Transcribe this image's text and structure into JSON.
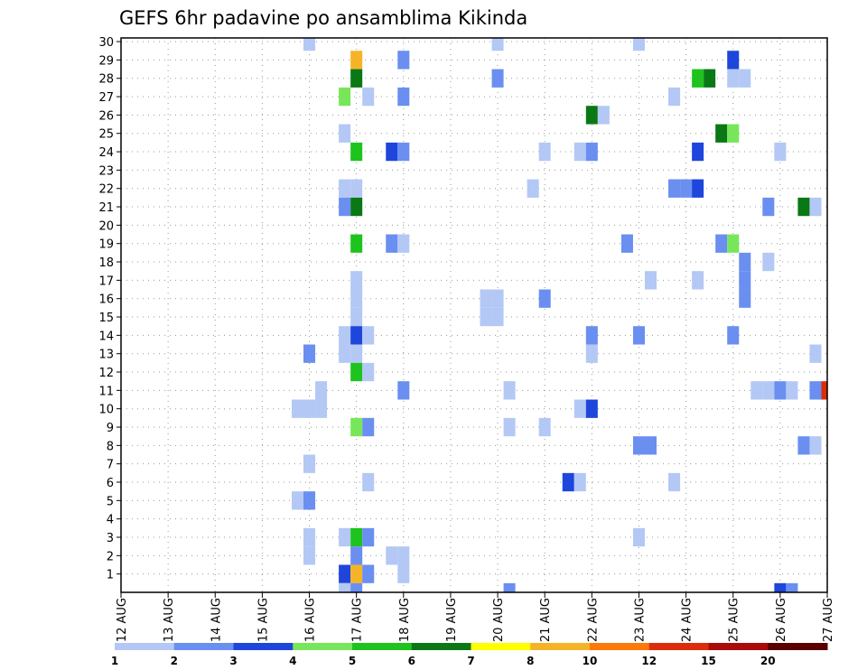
{
  "chart_data": {
    "type": "heatmap",
    "title": "GEFS 6hr padavine po ansamblima Kikinda",
    "x_tick_labels": [
      "12 AUG",
      "13 AUG",
      "14 AUG",
      "15 AUG",
      "16 AUG",
      "17 AUG",
      "18 AUG",
      "19 AUG",
      "20 AUG",
      "21 AUG",
      "22 AUG",
      "23 AUG",
      "24 AUG",
      "25 AUG",
      "26 AUG",
      "27 AUG"
    ],
    "y_tick_labels": [
      "1",
      "2",
      "3",
      "4",
      "5",
      "6",
      "7",
      "8",
      "9",
      "10",
      "11",
      "12",
      "13",
      "14",
      "15",
      "16",
      "17",
      "18",
      "19",
      "20",
      "21",
      "22",
      "23",
      "24",
      "25",
      "26",
      "27",
      "28",
      "29",
      "30"
    ],
    "ylim": [
      0,
      30
    ],
    "grid": true,
    "legend": {
      "placement": "bottom",
      "labels": [
        "1",
        "2",
        "3",
        "4",
        "5",
        "6",
        "7",
        "8",
        "10",
        "12",
        "15",
        "20"
      ],
      "colors": [
        "#b4c8f5",
        "#6a8ff0",
        "#1e46dc",
        "#78e65a",
        "#1ec31e",
        "#0a7814",
        "#ffff00",
        "#f5b428",
        "#ff780a",
        "#dc2d0a",
        "#aa0a0a",
        "#5a0000"
      ]
    },
    "cells": [
      {
        "member": 30,
        "day": 16.0,
        "cls": 1
      },
      {
        "member": 30,
        "day": 20.0,
        "cls": 1
      },
      {
        "member": 30,
        "day": 23.0,
        "cls": 1
      },
      {
        "member": 29,
        "day": 17.0,
        "cls": 8
      },
      {
        "member": 29,
        "day": 18.0,
        "cls": 2
      },
      {
        "member": 29,
        "day": 25.0,
        "cls": 3
      },
      {
        "member": 28,
        "day": 17.0,
        "cls": 6
      },
      {
        "member": 28,
        "day": 20.0,
        "cls": 2
      },
      {
        "member": 28,
        "day": 24.25,
        "cls": 5
      },
      {
        "member": 28,
        "day": 24.5,
        "cls": 6
      },
      {
        "member": 28,
        "day": 25.0,
        "cls": 1
      },
      {
        "member": 28,
        "day": 25.25,
        "cls": 1
      },
      {
        "member": 27,
        "day": 16.75,
        "cls": 4
      },
      {
        "member": 27,
        "day": 17.25,
        "cls": 1
      },
      {
        "member": 27,
        "day": 18.0,
        "cls": 2
      },
      {
        "member": 27,
        "day": 23.75,
        "cls": 1
      },
      {
        "member": 26,
        "day": 22.0,
        "cls": 6
      },
      {
        "member": 26,
        "day": 22.25,
        "cls": 1
      },
      {
        "member": 25,
        "day": 16.75,
        "cls": 1
      },
      {
        "member": 25,
        "day": 24.75,
        "cls": 6
      },
      {
        "member": 25,
        "day": 25.0,
        "cls": 4
      },
      {
        "member": 24,
        "day": 17.0,
        "cls": 5
      },
      {
        "member": 24,
        "day": 17.75,
        "cls": 3
      },
      {
        "member": 24,
        "day": 18.0,
        "cls": 2
      },
      {
        "member": 24,
        "day": 21.0,
        "cls": 1
      },
      {
        "member": 24,
        "day": 21.75,
        "cls": 1
      },
      {
        "member": 24,
        "day": 22.0,
        "cls": 2
      },
      {
        "member": 24,
        "day": 24.25,
        "cls": 3
      },
      {
        "member": 24,
        "day": 26.0,
        "cls": 1
      },
      {
        "member": 22,
        "day": 16.75,
        "cls": 1
      },
      {
        "member": 22,
        "day": 17.0,
        "cls": 1
      },
      {
        "member": 22,
        "day": 20.75,
        "cls": 1
      },
      {
        "member": 22,
        "day": 23.75,
        "cls": 2
      },
      {
        "member": 22,
        "day": 24.0,
        "cls": 2
      },
      {
        "member": 22,
        "day": 24.25,
        "cls": 3
      },
      {
        "member": 21,
        "day": 16.75,
        "cls": 2
      },
      {
        "member": 21,
        "day": 17.0,
        "cls": 6
      },
      {
        "member": 21,
        "day": 25.75,
        "cls": 2
      },
      {
        "member": 21,
        "day": 26.5,
        "cls": 6
      },
      {
        "member": 21,
        "day": 26.75,
        "cls": 1
      },
      {
        "member": 19,
        "day": 17.0,
        "cls": 5
      },
      {
        "member": 19,
        "day": 17.75,
        "cls": 2
      },
      {
        "member": 19,
        "day": 18.0,
        "cls": 1
      },
      {
        "member": 19,
        "day": 22.75,
        "cls": 2
      },
      {
        "member": 19,
        "day": 24.75,
        "cls": 2
      },
      {
        "member": 19,
        "day": 25.0,
        "cls": 4
      },
      {
        "member": 18,
        "day": 25.25,
        "cls": 2
      },
      {
        "member": 18,
        "day": 25.75,
        "cls": 1
      },
      {
        "member": 17,
        "day": 17.0,
        "cls": 1
      },
      {
        "member": 17,
        "day": 23.25,
        "cls": 1
      },
      {
        "member": 17,
        "day": 24.25,
        "cls": 1
      },
      {
        "member": 17,
        "day": 25.25,
        "cls": 2
      },
      {
        "member": 16,
        "day": 17.0,
        "cls": 1
      },
      {
        "member": 16,
        "day": 19.75,
        "cls": 1
      },
      {
        "member": 16,
        "day": 20.0,
        "cls": 1
      },
      {
        "member": 16,
        "day": 21.0,
        "cls": 2
      },
      {
        "member": 16,
        "day": 25.25,
        "cls": 2
      },
      {
        "member": 15,
        "day": 17.0,
        "cls": 1
      },
      {
        "member": 15,
        "day": 19.75,
        "cls": 1
      },
      {
        "member": 15,
        "day": 20.0,
        "cls": 1
      },
      {
        "member": 14,
        "day": 16.75,
        "cls": 1
      },
      {
        "member": 14,
        "day": 17.0,
        "cls": 3
      },
      {
        "member": 14,
        "day": 17.25,
        "cls": 1
      },
      {
        "member": 14,
        "day": 22.0,
        "cls": 2
      },
      {
        "member": 14,
        "day": 23.0,
        "cls": 2
      },
      {
        "member": 14,
        "day": 25.0,
        "cls": 2
      },
      {
        "member": 13,
        "day": 16.0,
        "cls": 2
      },
      {
        "member": 13,
        "day": 16.75,
        "cls": 1
      },
      {
        "member": 13,
        "day": 17.0,
        "cls": 1
      },
      {
        "member": 13,
        "day": 22.0,
        "cls": 1
      },
      {
        "member": 13,
        "day": 26.75,
        "cls": 1
      },
      {
        "member": 12,
        "day": 17.0,
        "cls": 5
      },
      {
        "member": 12,
        "day": 17.25,
        "cls": 1
      },
      {
        "member": 11,
        "day": 16.25,
        "cls": 1
      },
      {
        "member": 11,
        "day": 18.0,
        "cls": 2
      },
      {
        "member": 11,
        "day": 20.25,
        "cls": 1
      },
      {
        "member": 11,
        "day": 25.5,
        "cls": 1
      },
      {
        "member": 11,
        "day": 25.75,
        "cls": 1
      },
      {
        "member": 11,
        "day": 26.0,
        "cls": 2
      },
      {
        "member": 11,
        "day": 26.25,
        "cls": 1
      },
      {
        "member": 11,
        "day": 26.75,
        "cls": 2
      },
      {
        "member": 11,
        "day": 27.0,
        "cls": 10
      },
      {
        "member": 10,
        "day": 15.75,
        "cls": 1
      },
      {
        "member": 10,
        "day": 16.0,
        "cls": 1
      },
      {
        "member": 10,
        "day": 16.25,
        "cls": 1
      },
      {
        "member": 10,
        "day": 21.75,
        "cls": 1
      },
      {
        "member": 10,
        "day": 22.0,
        "cls": 3
      },
      {
        "member": 9,
        "day": 17.0,
        "cls": 4
      },
      {
        "member": 9,
        "day": 17.25,
        "cls": 2
      },
      {
        "member": 9,
        "day": 20.25,
        "cls": 1
      },
      {
        "member": 9,
        "day": 21.0,
        "cls": 1
      },
      {
        "member": 8,
        "day": 23.0,
        "cls": 2
      },
      {
        "member": 8,
        "day": 23.25,
        "cls": 2
      },
      {
        "member": 8,
        "day": 26.5,
        "cls": 2
      },
      {
        "member": 8,
        "day": 26.75,
        "cls": 1
      },
      {
        "member": 7,
        "day": 16.0,
        "cls": 1
      },
      {
        "member": 6,
        "day": 17.25,
        "cls": 1
      },
      {
        "member": 6,
        "day": 21.5,
        "cls": 3
      },
      {
        "member": 6,
        "day": 21.75,
        "cls": 1
      },
      {
        "member": 6,
        "day": 23.75,
        "cls": 1
      },
      {
        "member": 5,
        "day": 15.75,
        "cls": 1
      },
      {
        "member": 5,
        "day": 16.0,
        "cls": 2
      },
      {
        "member": 3,
        "day": 16.0,
        "cls": 1
      },
      {
        "member": 3,
        "day": 16.75,
        "cls": 1
      },
      {
        "member": 3,
        "day": 17.0,
        "cls": 5
      },
      {
        "member": 3,
        "day": 17.25,
        "cls": 2
      },
      {
        "member": 3,
        "day": 23.0,
        "cls": 1
      },
      {
        "member": 2,
        "day": 16.0,
        "cls": 1
      },
      {
        "member": 2,
        "day": 17.0,
        "cls": 2
      },
      {
        "member": 2,
        "day": 17.75,
        "cls": 1
      },
      {
        "member": 2,
        "day": 18.0,
        "cls": 1
      },
      {
        "member": 1,
        "day": 16.75,
        "cls": 3
      },
      {
        "member": 1,
        "day": 17.0,
        "cls": 8
      },
      {
        "member": 1,
        "day": 17.25,
        "cls": 2
      },
      {
        "member": 1,
        "day": 18.0,
        "cls": 1
      },
      {
        "member": 0,
        "day": 16.75,
        "cls": 1
      },
      {
        "member": 0,
        "day": 17.0,
        "cls": 2
      },
      {
        "member": 0,
        "day": 20.25,
        "cls": 2
      },
      {
        "member": 0,
        "day": 26.0,
        "cls": 3
      },
      {
        "member": 0,
        "day": 26.25,
        "cls": 2
      }
    ]
  }
}
